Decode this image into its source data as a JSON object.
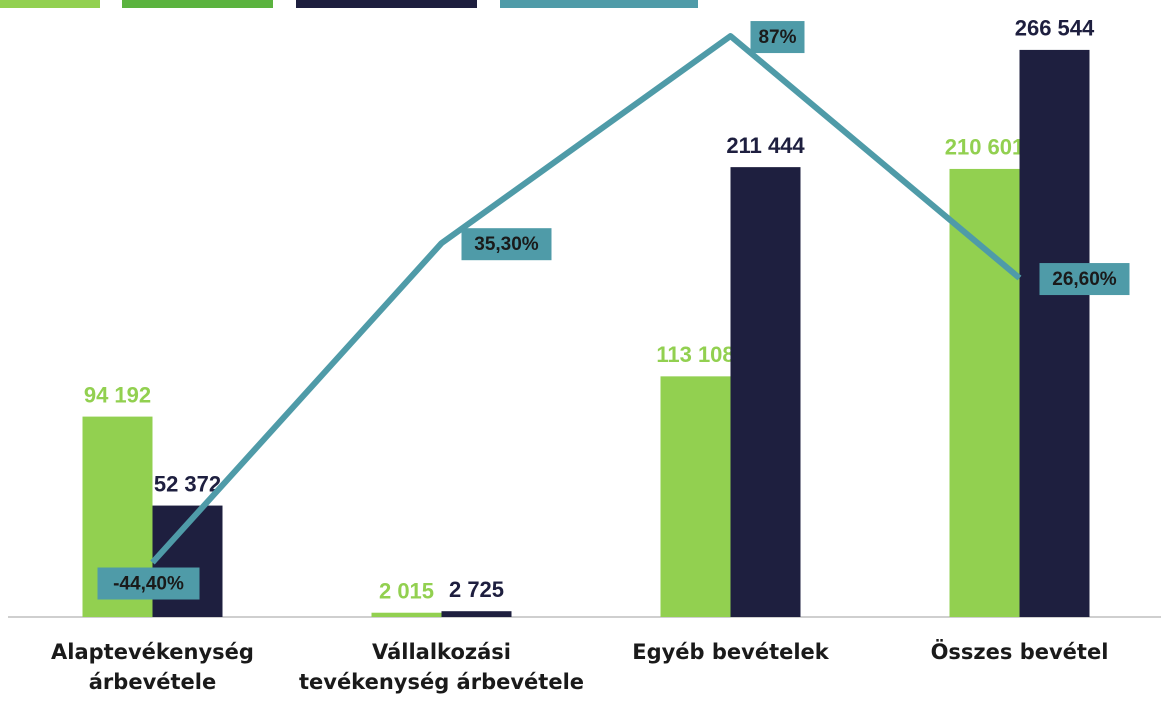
{
  "chart_data": {
    "type": "bar-line",
    "categories": [
      "Alaptevékenység árbevétele",
      "Vállalkozási tevékenység árbevétele",
      "Egyéb bevételek",
      "Összes bevétel"
    ],
    "series": [
      {
        "color": "#92d050",
        "values": [
          94192,
          2015,
          113108,
          210601
        ],
        "value_labels": [
          "94 192",
          "2 015",
          "113 108",
          "210 601"
        ]
      },
      {
        "color": "#1e1f3f",
        "values": [
          52372,
          2725,
          211444,
          266544
        ],
        "value_labels": [
          "52 372",
          "2 725",
          "211 444",
          "266 544"
        ]
      },
      {
        "color": "#4f9ba8",
        "axis": "y2",
        "values": [
          -44.4,
          35.3,
          87,
          26.6
        ],
        "value_labels": [
          "-44,40%",
          "35,30%",
          "87%",
          "26,60%"
        ]
      }
    ],
    "ylim": [
      0,
      290000
    ],
    "y2lim": [
      -58,
      96
    ]
  }
}
